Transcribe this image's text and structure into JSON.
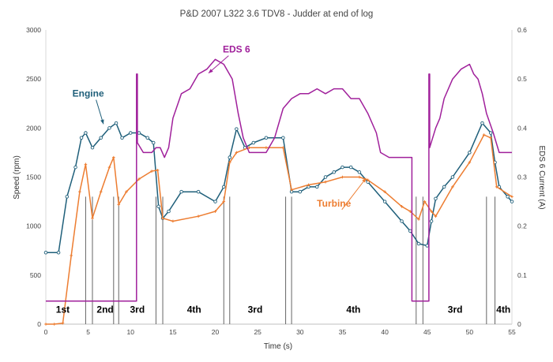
{
  "chart_data": {
    "type": "line",
    "title": "P&D  2007 L322 3.6 TDV8  -  Judder at end of log",
    "xlabel": "Time (s)",
    "ylabel_left": "Speed (rpm)",
    "ylabel_right": "EDS 6 Current (A)",
    "xlim": [
      0,
      55
    ],
    "ylim_left": [
      0,
      3000
    ],
    "ylim_right": [
      0,
      0.6
    ],
    "x_ticks": [
      0,
      5,
      10,
      15,
      20,
      25,
      30,
      35,
      40,
      45,
      50,
      55
    ],
    "y_ticks_left": [
      0,
      500,
      1000,
      1500,
      2000,
      2500,
      3000
    ],
    "y_ticks_right": [
      "0",
      "0.1",
      "0.2",
      "0.3",
      "0.4",
      "0.5",
      "0.6"
    ],
    "grid": false,
    "colors": {
      "engine": "#1f5f7a",
      "turbine": "#ed7d31",
      "eds6": "#a0209b",
      "markers": "#666666"
    },
    "series": [
      {
        "name": "Engine",
        "axis": "left",
        "x": [
          0,
          1.5,
          2.5,
          3.5,
          4.2,
          4.7,
          5.5,
          6.5,
          7.5,
          8.3,
          9.0,
          10.0,
          11.0,
          12.0,
          12.7,
          13.3,
          13.8,
          14.5,
          16.0,
          18.0,
          20.0,
          21.0,
          21.7,
          22.5,
          23.5,
          24.5,
          26.0,
          28.0,
          29.0,
          30.0,
          31.0,
          32.0,
          33.0,
          34.0,
          35.0,
          36.0,
          37.0,
          38.0,
          40.0,
          42.0,
          43.0,
          44.0,
          45.0,
          45.5,
          46.0,
          47.0,
          48.0,
          50.0,
          51.5,
          52.5,
          53.0,
          53.5,
          54.5,
          55.0
        ],
        "y": [
          730,
          730,
          1300,
          1600,
          1900,
          1950,
          1800,
          1900,
          2000,
          2050,
          1900,
          1950,
          1950,
          1900,
          1850,
          1200,
          1080,
          1150,
          1350,
          1350,
          1250,
          1400,
          1700,
          1990,
          1800,
          1850,
          1900,
          1900,
          1350,
          1350,
          1400,
          1400,
          1500,
          1550,
          1600,
          1600,
          1550,
          1450,
          1250,
          1050,
          950,
          820,
          800,
          1050,
          1280,
          1400,
          1500,
          1750,
          2050,
          1950,
          1650,
          1400,
          1300,
          1250
        ]
      },
      {
        "name": "Turbine",
        "axis": "left",
        "x": [
          0,
          1.0,
          2.0,
          3.0,
          4.0,
          4.7,
          5.5,
          6.5,
          7.5,
          8.0,
          8.6,
          9.5,
          11.0,
          12.5,
          13.2,
          13.8,
          15.0,
          18.0,
          20.0,
          21.0,
          21.7,
          22.5,
          24.0,
          26.0,
          28.0,
          29.0,
          31.0,
          33.0,
          35.0,
          37.0,
          38.0,
          40.0,
          42.0,
          43.0,
          44.0,
          44.7,
          45.5,
          46.0,
          48.0,
          50.0,
          51.7,
          52.5,
          53.2,
          55.0
        ],
        "y": [
          0,
          0,
          10,
          700,
          1350,
          1630,
          1080,
          1350,
          1600,
          1700,
          1220,
          1350,
          1480,
          1560,
          1570,
          1080,
          1050,
          1100,
          1150,
          1250,
          1650,
          1750,
          1800,
          1800,
          1800,
          1370,
          1420,
          1450,
          1500,
          1500,
          1470,
          1350,
          1200,
          1150,
          1070,
          1250,
          1150,
          1100,
          1400,
          1650,
          1930,
          1900,
          1400,
          1300
        ]
      },
      {
        "name": "EDS 6",
        "axis": "right",
        "x": [
          0,
          10.7,
          10.7,
          10.8,
          10.8,
          11.5,
          12.5,
          13.0,
          13.5,
          14.0,
          14.5,
          15.0,
          16.0,
          17.0,
          18.0,
          19.0,
          20.0,
          21.0,
          22.0,
          22.7,
          23.3,
          24.0,
          26.0,
          27.0,
          28.0,
          29.0,
          30.0,
          31.0,
          32.0,
          33.0,
          34.0,
          35.0,
          36.0,
          37.0,
          38.0,
          39.0,
          39.5,
          40.5,
          42.5,
          43.0,
          43.2,
          43.2,
          45.2,
          45.2,
          45.3,
          45.3,
          46.0,
          46.5,
          47.0,
          48.0,
          49.0,
          50.0,
          50.5,
          51.0,
          51.5,
          52.0,
          52.8,
          53.5,
          54.0,
          55.0
        ],
        "y": [
          0.047,
          0.047,
          0.51,
          0.51,
          0.37,
          0.35,
          0.35,
          0.36,
          0.36,
          0.34,
          0.36,
          0.42,
          0.47,
          0.48,
          0.51,
          0.52,
          0.54,
          0.53,
          0.5,
          0.43,
          0.38,
          0.35,
          0.35,
          0.38,
          0.44,
          0.46,
          0.47,
          0.47,
          0.48,
          0.47,
          0.48,
          0.48,
          0.46,
          0.46,
          0.43,
          0.39,
          0.35,
          0.34,
          0.34,
          0.34,
          0.34,
          0.047,
          0.047,
          0.51,
          0.51,
          0.36,
          0.4,
          0.42,
          0.46,
          0.5,
          0.52,
          0.53,
          0.51,
          0.5,
          0.47,
          0.43,
          0.39,
          0.35,
          0.35,
          0.35
        ]
      }
    ],
    "annotations": [
      {
        "text": "Engine",
        "x": 5.0,
        "y": 2320,
        "color": "#1f5f7a",
        "arrow_to": [
          6.8,
          2040
        ]
      },
      {
        "text": "EDS 6",
        "x": 22.5,
        "y": 2770,
        "color": "#a0209b",
        "arrow_to": [
          19.2,
          2560
        ]
      },
      {
        "text": "Turbine",
        "x": 34.0,
        "y": 1200,
        "color": "#ed7d31",
        "arrow_to": [
          37.8,
          1490
        ]
      }
    ],
    "shift_lines": [
      4.7,
      5.5,
      8.0,
      8.6,
      13.0,
      13.8,
      21.0,
      21.7,
      28.3,
      29.0,
      43.7,
      44.5,
      52.0,
      53.0
    ],
    "gear_labels": [
      {
        "text": "1st",
        "x": 2.0
      },
      {
        "text": "2nd",
        "x": 7.0
      },
      {
        "text": "3rd",
        "x": 10.8
      },
      {
        "text": "4th",
        "x": 17.5
      },
      {
        "text": "3rd",
        "x": 24.7
      },
      {
        "text": "4th",
        "x": 36.3
      },
      {
        "text": "3rd",
        "x": 48.3
      },
      {
        "text": "4th",
        "x": 54.0
      }
    ]
  }
}
